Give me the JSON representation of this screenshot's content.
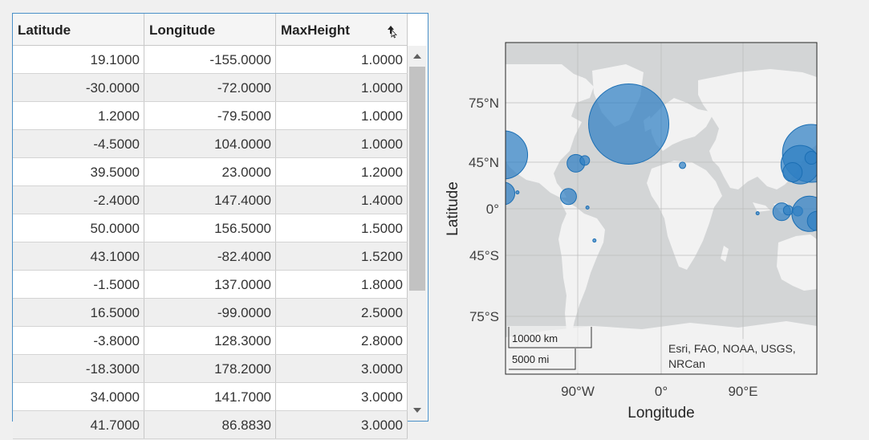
{
  "table": {
    "columns": [
      "Latitude",
      "Longitude",
      "MaxHeight"
    ],
    "sorted_column": "MaxHeight",
    "rows": [
      [
        "19.1000",
        "-155.0000",
        "1.0000"
      ],
      [
        "-30.0000",
        "-72.0000",
        "1.0000"
      ],
      [
        "1.2000",
        "-79.5000",
        "1.0000"
      ],
      [
        "-4.5000",
        "104.0000",
        "1.0000"
      ],
      [
        "39.5000",
        "23.0000",
        "1.2000"
      ],
      [
        "-2.4000",
        "147.4000",
        "1.4000"
      ],
      [
        "50.0000",
        "156.5000",
        "1.5000"
      ],
      [
        "43.1000",
        "-82.4000",
        "1.5200"
      ],
      [
        "-1.5000",
        "137.0000",
        "1.8000"
      ],
      [
        "16.5000",
        "-99.0000",
        "2.5000"
      ],
      [
        "-3.8000",
        "128.3000",
        "2.8000"
      ],
      [
        "-18.3000",
        "178.2000",
        "3.0000"
      ],
      [
        "34.0000",
        "141.7000",
        "3.0000"
      ],
      [
        "41.7000",
        "86.8830",
        "3.0000"
      ]
    ]
  },
  "map": {
    "ylabel": "Latitude",
    "xlabel": "Longitude",
    "lat_ticks": [
      "75°N",
      "45°N",
      "0°",
      "45°S",
      "75°S"
    ],
    "lon_ticks": [
      "90°W",
      "0°",
      "90°E"
    ],
    "attribution_line1": "Esri, FAO, NOAA, USGS,",
    "attribution_line2": "NRCan",
    "scale_km": "10000 km",
    "scale_mi": "5000 mi",
    "marker_color": "#2f7fc4"
  },
  "chart_data": {
    "type": "scatter",
    "xlabel": "Longitude",
    "ylabel": "Latitude",
    "series": [
      {
        "points": [
          {
            "lat": 64.0,
            "lon": -35.0,
            "size": 50
          },
          {
            "lat": 47.0,
            "lon": -170.0,
            "size": 30
          },
          {
            "lat": 15.0,
            "lon": -170.0,
            "size": 14
          },
          {
            "lat": 41.0,
            "lon": -92.0,
            "size": 11
          },
          {
            "lat": 43.1,
            "lon": -82.4,
            "size": 6
          },
          {
            "lat": 12.0,
            "lon": -100.0,
            "size": 10
          },
          {
            "lat": 1.2,
            "lon": -79.5,
            "size": 2
          },
          {
            "lat": -30.0,
            "lon": -72.0,
            "size": 2
          },
          {
            "lat": 16.0,
            "lon": -155.0,
            "size": 2
          },
          {
            "lat": 39.5,
            "lon": 23.0,
            "size": 4
          },
          {
            "lat": -4.5,
            "lon": 104.0,
            "size": 2
          },
          {
            "lat": 48.0,
            "lon": 162.0,
            "size": 36
          },
          {
            "lat": 40.0,
            "lon": 150.0,
            "size": 24
          },
          {
            "lat": 34.0,
            "lon": 141.7,
            "size": 12
          },
          {
            "lat": 45.0,
            "lon": 162.0,
            "size": 8
          },
          {
            "lat": -3.0,
            "lon": 130.0,
            "size": 11
          },
          {
            "lat": -1.5,
            "lon": 137.0,
            "size": 6
          },
          {
            "lat": -2.4,
            "lon": 147.4,
            "size": 6
          },
          {
            "lat": -5.0,
            "lon": 160.0,
            "size": 22
          },
          {
            "lat": -12.0,
            "lon": 168.0,
            "size": 12
          }
        ]
      }
    ]
  }
}
